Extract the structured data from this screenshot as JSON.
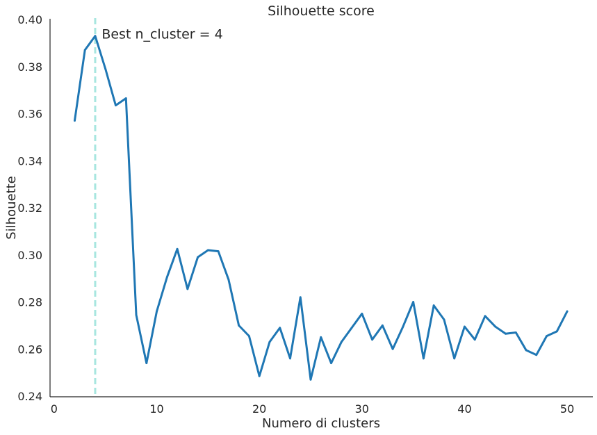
{
  "chart_data": {
    "type": "line",
    "title": "Silhouette score",
    "xlabel": "Numero di clusters",
    "ylabel": "Silhouette",
    "xlim": [
      -0.4,
      52.5
    ],
    "ylim": [
      0.24,
      0.4
    ],
    "xticks": [
      0,
      10,
      20,
      30,
      40,
      50
    ],
    "yticks": [
      0.24,
      0.26,
      0.28,
      0.3,
      0.32,
      0.34,
      0.36,
      0.38,
      0.4
    ],
    "ytick_labels": [
      "0.24",
      "0.26",
      "0.28",
      "0.30",
      "0.32",
      "0.34",
      "0.36",
      "0.38",
      "0.40"
    ],
    "grid": false,
    "series": [
      {
        "color": "#1f77b4",
        "x": [
          2,
          3,
          4,
          5,
          6,
          7,
          8,
          9,
          10,
          11,
          12,
          13,
          14,
          15,
          16,
          17,
          18,
          19,
          20,
          21,
          22,
          23,
          24,
          25,
          26,
          27,
          28,
          29,
          30,
          31,
          32,
          33,
          34,
          35,
          36,
          37,
          38,
          39,
          40,
          41,
          42,
          43,
          44,
          45,
          46,
          47,
          48,
          49,
          50
        ],
        "y": [
          0.357,
          0.387,
          0.393,
          0.379,
          0.3635,
          0.3665,
          0.2745,
          0.254,
          0.276,
          0.2905,
          0.3025,
          0.2855,
          0.299,
          0.302,
          0.3015,
          0.2895,
          0.27,
          0.2655,
          0.2485,
          0.263,
          0.269,
          0.256,
          0.282,
          0.247,
          0.265,
          0.254,
          0.263,
          0.269,
          0.275,
          0.264,
          0.27,
          0.26,
          0.2695,
          0.28,
          0.256,
          0.2785,
          0.2725,
          0.256,
          0.2695,
          0.264,
          0.274,
          0.2695,
          0.2665,
          0.267,
          0.2595,
          0.2575,
          0.2655,
          0.2675,
          0.276
        ]
      }
    ],
    "vline": {
      "x": 4,
      "color": "#a8e6e0",
      "style": "dashed"
    },
    "annotation": {
      "text": "Best n_cluster = 4",
      "x": 4.5,
      "y": 0.393
    }
  }
}
